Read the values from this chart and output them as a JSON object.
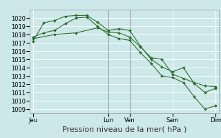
{
  "bg_color": "#cce8e8",
  "grid_color": "#ffffff",
  "line_color": "#2d6e2d",
  "marker_color": "#2d6e2d",
  "title": "Pression niveau de la mer( hPa )",
  "ylim": [
    1008.5,
    1021.0
  ],
  "yticks": [
    1009,
    1010,
    1011,
    1012,
    1013,
    1014,
    1015,
    1016,
    1017,
    1018,
    1019,
    1020
  ],
  "xtick_labels": [
    "Jeu",
    "Lun",
    "Ven",
    "Sam",
    "Dim"
  ],
  "xtick_positions": [
    0,
    3.5,
    4.5,
    6.5,
    8.5
  ],
  "x_total": 8.5,
  "series": [
    {
      "x": [
        0,
        0.5,
        1.0,
        1.5,
        2.0,
        2.5,
        3.0,
        3.5,
        4.0,
        4.5,
        5.0,
        5.5,
        6.0,
        6.5,
        7.0,
        7.5,
        8.0,
        8.5
      ],
      "y": [
        1017.2,
        1019.4,
        1019.7,
        1020.2,
        1020.3,
        1020.3,
        1019.5,
        1018.5,
        1018.7,
        1018.5,
        1016.6,
        1015.0,
        1014.1,
        1013.5,
        1014.0,
        1012.1,
        1011.0,
        1011.5
      ]
    },
    {
      "x": [
        0,
        0.5,
        1.0,
        1.5,
        2.0,
        2.5,
        3.0,
        3.5,
        4.0,
        4.5,
        5.0,
        5.5,
        6.0,
        6.5,
        7.0,
        7.5,
        8.0,
        8.5
      ],
      "y": [
        1017.7,
        1018.2,
        1018.5,
        1019.3,
        1020.0,
        1020.1,
        1019.0,
        1018.0,
        1017.5,
        1017.3,
        1015.8,
        1014.5,
        1013.0,
        1012.8,
        1012.2,
        1010.5,
        1009.0,
        1009.4
      ]
    },
    {
      "x": [
        0,
        1.0,
        2.0,
        3.0,
        3.5,
        4.0,
        4.5,
        5.0,
        5.5,
        6.0,
        6.5,
        7.0,
        7.5,
        8.0,
        8.5
      ],
      "y": [
        1017.5,
        1018.0,
        1018.2,
        1018.8,
        1018.3,
        1018.2,
        1017.7,
        1016.5,
        1015.2,
        1015.0,
        1013.2,
        1012.7,
        1012.2,
        1011.8,
        1011.7
      ]
    }
  ],
  "vlines_x": [
    3.5,
    4.5
  ],
  "title_fontsize": 8,
  "tick_fontsize": 6,
  "figwidth": 3.2,
  "figheight": 2.0,
  "dpi": 100
}
